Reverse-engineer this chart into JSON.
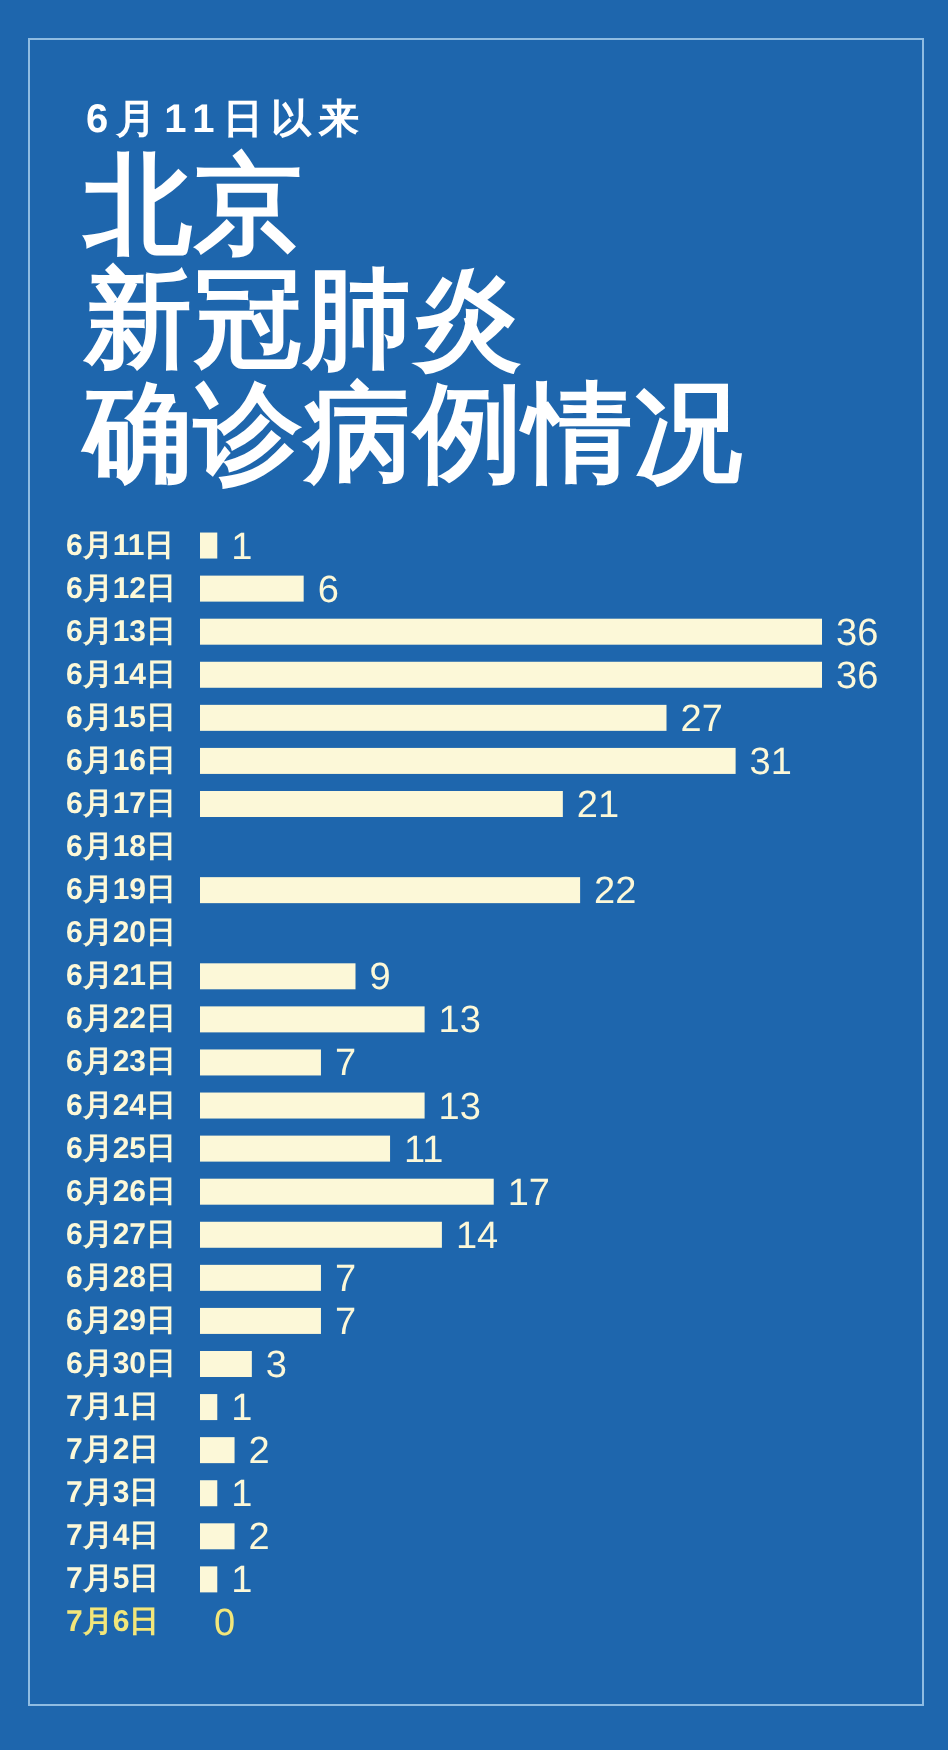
{
  "chart_data": {
    "type": "bar",
    "orientation": "horizontal",
    "subtitle": "6月11日以来",
    "title": "北京新冠肺炎确诊病例情况",
    "categories": [
      "6月11日",
      "6月12日",
      "6月13日",
      "6月14日",
      "6月15日",
      "6月16日",
      "6月17日",
      "6月18日",
      "6月19日",
      "6月20日",
      "6月21日",
      "6月22日",
      "6月23日",
      "6月24日",
      "6月25日",
      "6月26日",
      "6月27日",
      "6月28日",
      "6月29日",
      "6月30日",
      "7月1日",
      "7月2日",
      "7月3日",
      "7月4日",
      "7月5日",
      "7月6日"
    ],
    "values": [
      1,
      6,
      36,
      36,
      27,
      31,
      21,
      null,
      22,
      null,
      9,
      13,
      7,
      13,
      11,
      17,
      14,
      7,
      7,
      3,
      1,
      2,
      1,
      2,
      1,
      0
    ],
    "colors": [
      "#fcf8d8",
      "#fcf8d8",
      "#fcf8d8",
      "#fcf8d8",
      "#fcf8d8",
      "#fcf8d8",
      "#fcf8d8",
      "#fcf8d8",
      "#fcf8d8",
      "#fcf8d8",
      "#fcf8d8",
      "#fcf8d8",
      "#fcf8d8",
      "#fcf8d8",
      "#fcf8d8",
      "#fcf8d8",
      "#fcf8d8",
      "#fcf8d8",
      "#fcf8d8",
      "#fcf8d8",
      "#fcf8d8",
      "#fcf8d8",
      "#fcf8d8",
      "#fcf8d8",
      "#fcf8d8",
      "#f2e67a"
    ],
    "data_labels": true
  }
}
